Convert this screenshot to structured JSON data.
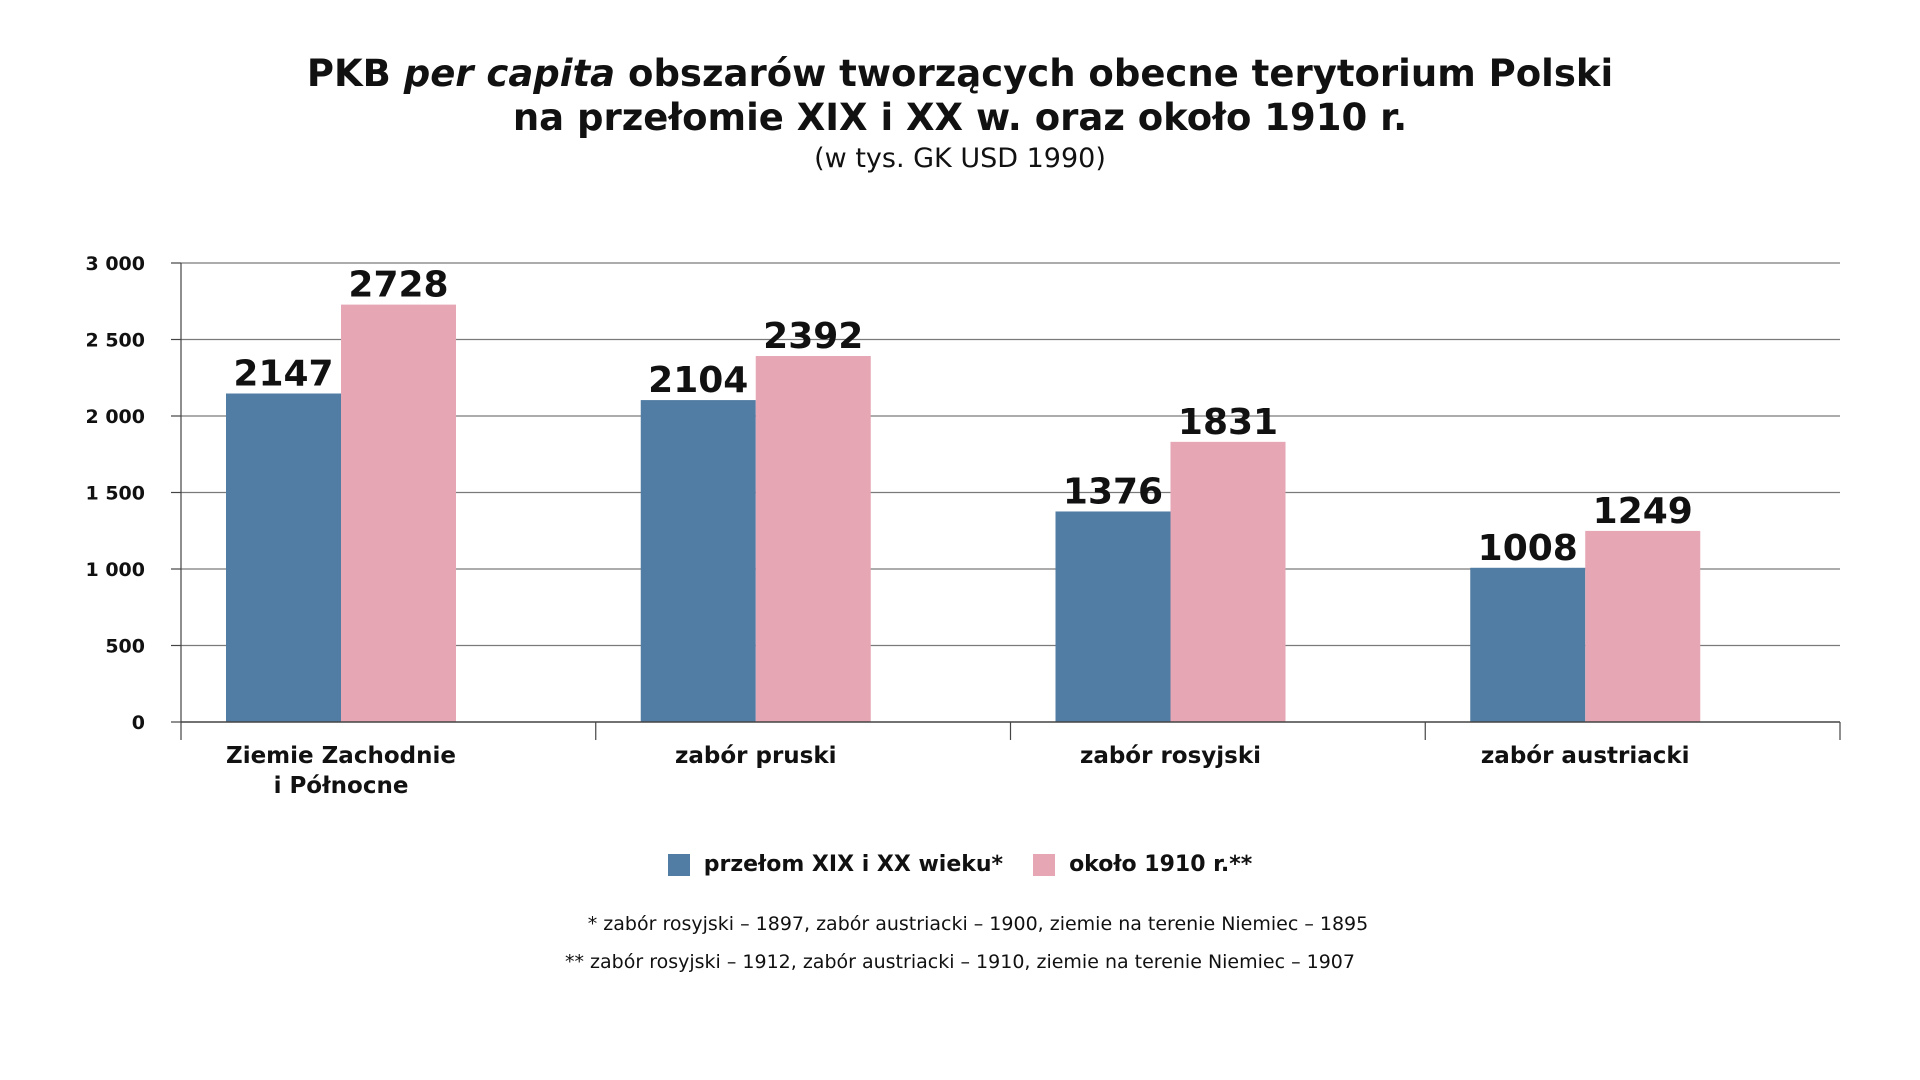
{
  "chart_data": {
    "type": "bar",
    "title_part1": "PKB ",
    "title_italic": "per capita",
    "title_part2": " obszarów tworzących obecne terytorium Polski",
    "title_line2": "na przełomie XIX i XX w. oraz około 1910 r.",
    "subtitle": "(w tys. GK USD 1990)",
    "categories": [
      [
        "Ziemie Zachodnie",
        "i Północne"
      ],
      [
        "zabór pruski"
      ],
      [
        "zabór rosyjski"
      ],
      [
        "zabór austriacki"
      ]
    ],
    "series": [
      {
        "name": "przełom XIX i XX wieku*",
        "color": "#517ca4",
        "values": [
          2147,
          2104,
          1376,
          1008
        ]
      },
      {
        "name": "około 1910 r.**",
        "color": "#e6a6b4",
        "values": [
          2728,
          2392,
          1831,
          1249
        ]
      }
    ],
    "ylim": [
      0,
      3000
    ],
    "yticks": [
      0,
      500,
      1000,
      1500,
      2000,
      2500,
      3000
    ],
    "ytick_labels": [
      "0",
      "500",
      "1 000",
      "1 500",
      "2 000",
      "2 500",
      "3 000"
    ],
    "grid": true,
    "legend_position": "bottom"
  },
  "notes": [
    "* zabór rosyjski – 1897, zabór austriacki – 1900, ziemie na terenie Niemiec – 1895",
    "** zabór rosyjski – 1912, zabór austriacki – 1910, ziemie na terenie Niemiec – 1907"
  ]
}
